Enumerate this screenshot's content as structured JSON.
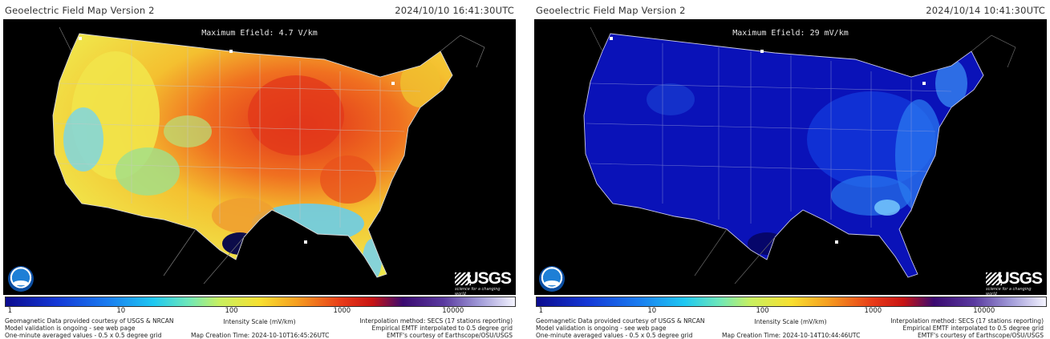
{
  "panels": [
    {
      "title": "Geoelectric Field Map Version 2",
      "timestamp": "2024/10/10 16:41:30UTC",
      "max_efield": "Maximum Efield: 4.7 V/km",
      "colorbar_ticks": [
        "1",
        "10",
        "100",
        "1000",
        "10000"
      ],
      "intensity_label": "Intensity Scale (mV/km)",
      "footer_left": [
        "Geomagnetic Data provided courtesy of USGS & NRCAN",
        "Model validation is ongoing - see web page",
        "One-minute averaged values - 0.5 x 0.5 degree grid"
      ],
      "footer_right": [
        "Interpolation method: SECS (17 stations reporting)",
        "Empirical EMTF interpolated to 0.5 degree grid",
        "EMTF's courtesy of Earthscope/OSU/USGS"
      ],
      "creation_time": "Map Creation Time: 2024-10-10T16:45:26UTC",
      "usgs_tagline": "science for a changing world",
      "usgs_text": "USGS",
      "map_palette": "warm",
      "colors": {
        "low": "#56c8e8",
        "mid": "#f2e84a",
        "high": "#e8401a"
      }
    },
    {
      "title": "Geoelectric Field Map Version 2",
      "timestamp": "2024/10/14 10:41:30UTC",
      "max_efield": "Maximum Efield: 29 mV/km",
      "colorbar_ticks": [
        "1",
        "10",
        "100",
        "1000",
        "10000"
      ],
      "intensity_label": "Intensity Scale (mV/km)",
      "footer_left": [
        "Geomagnetic Data provided courtesy of USGS & NRCAN",
        "Model validation is ongoing - see web page",
        "One-minute averaged values - 0.5 x 0.5 degree grid"
      ],
      "footer_right": [
        "Interpolation method: SECS (17 stations reporting)",
        "Empirical EMTF interpolated to 0.5 degree grid",
        "EMTF's courtesy of Earthscope/OSU/USGS"
      ],
      "creation_time": "Map Creation Time: 2024-10-14T10:44:46UTC",
      "usgs_tagline": "science for a changing world",
      "usgs_text": "USGS",
      "map_palette": "cool",
      "colors": {
        "low": "#0a0ac0",
        "mid": "#1650f0",
        "high": "#7ad0ff"
      }
    }
  ]
}
